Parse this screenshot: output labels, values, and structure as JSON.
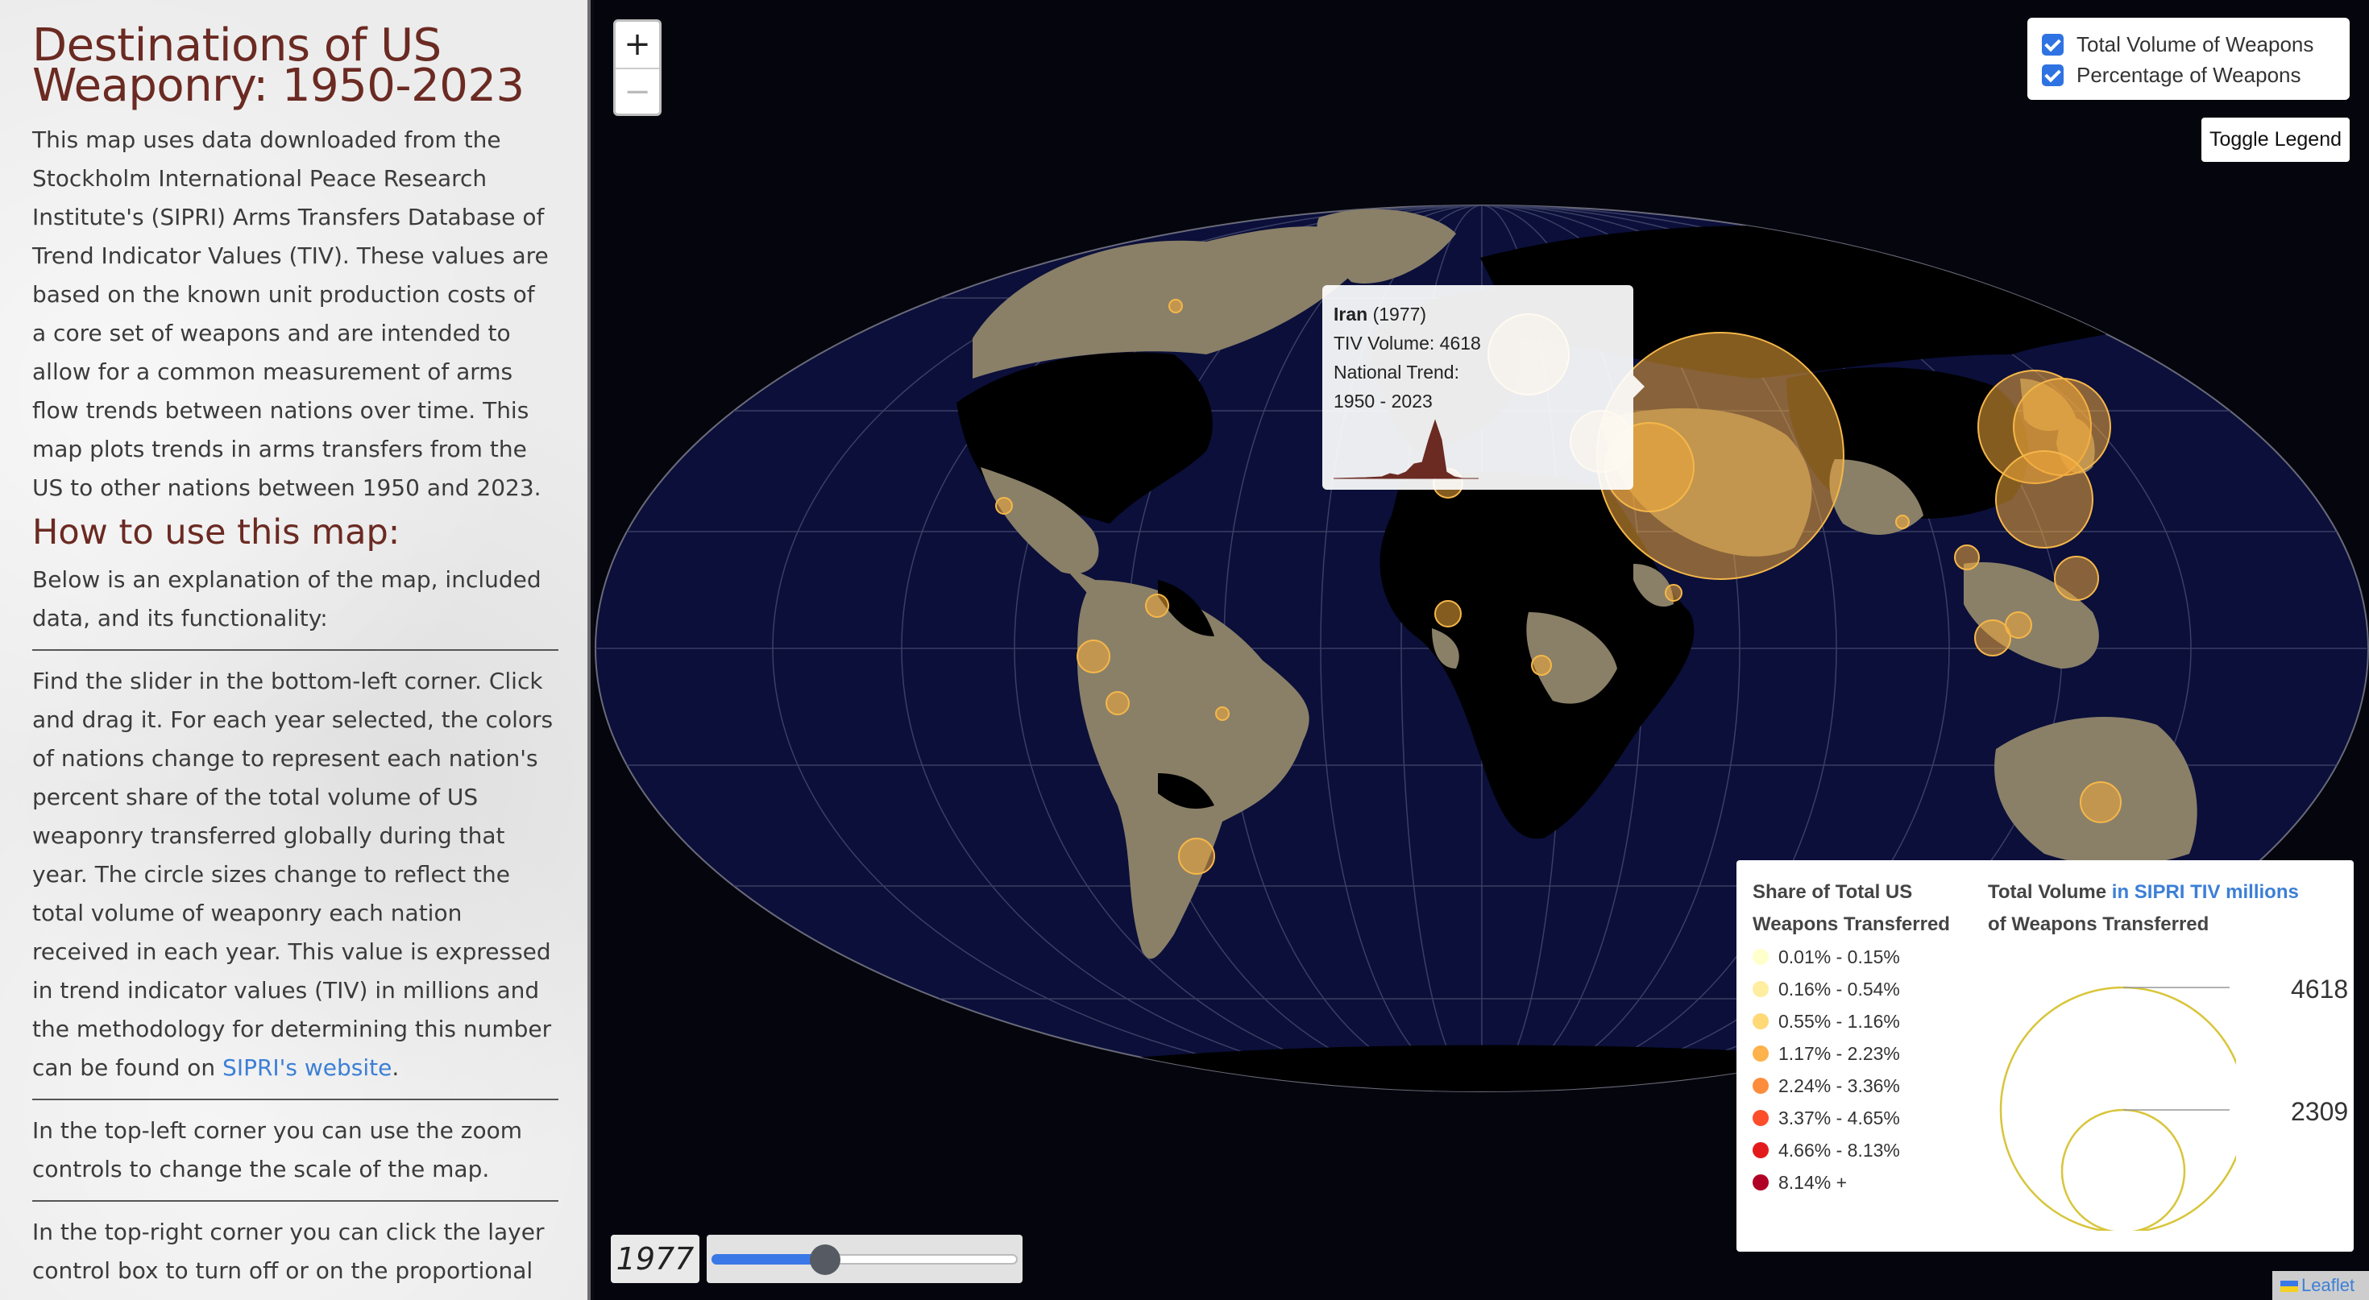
{
  "sidebar": {
    "title": "Destinations of US Weaponry: 1950-2023",
    "intro": "This map uses data downloaded from the Stockholm International Peace Research Institute's (SIPRI) Arms Transfers Database of Trend Indicator Values (TIV). These values are based on the known unit production costs of a core set of weapons and are intended to allow for a common measurement of arms flow trends between nations over time. This map plots trends in arms transfers from the US to other nations between 1950 and 2023.",
    "howto_heading": "How to use this map:",
    "howto_intro": "Below is an explanation of the map, included data, and its functionality:",
    "para_slider": "Find the slider in the bottom-left corner. Click and drag it. For each year selected, the colors of nations change to represent each nation's percent share of the total volume of US weaponry transferred globally during that year. The circle sizes change to reflect the total volume of weaponry each nation received in each year. This value is expressed in trend indicator values (TIV) in millions and the methodology for determining this number can be found on",
    "para_slider_link": "SIPRI's website",
    "para_zoom": "In the top-left corner you can use the zoom controls to change the scale of the map.",
    "para_layers": "In the top-right corner you can click the layer control box to turn off or on the proportional"
  },
  "map": {
    "zoom_in": "+",
    "zoom_out": "−",
    "layers": [
      "Total Volume of Weapons",
      "Percentage of Weapons"
    ],
    "toggle_legend": "Toggle Legend",
    "attribution": "Leaflet",
    "colors": {
      "ocean": "#0b0f3a",
      "land_data": "#8a8068",
      "land_nodata": "#000000",
      "circle": "#f0a83a"
    }
  },
  "popup": {
    "country": "Iran",
    "year_label": "(1977)",
    "volume": "TIV Volume: 4618",
    "trend": "National Trend:",
    "range": "1950 - 2023"
  },
  "slider": {
    "year": "1977",
    "min": 1950,
    "max": 2023,
    "value": 1977
  },
  "legend": {
    "share_title_1": "Share of Total US",
    "share_title_2": "Weapons Transferred",
    "volume_title_a": "Total Volume",
    "volume_title_b": "in SIPRI TIV millions",
    "volume_title_2": "of Weapons Transferred",
    "classes": [
      {
        "label": "0.01% - 0.15%",
        "color": "#ffffcc"
      },
      {
        "label": "0.16% - 0.54%",
        "color": "#ffeda0"
      },
      {
        "label": "0.55% - 1.16%",
        "color": "#fed976"
      },
      {
        "label": "1.17% - 2.23%",
        "color": "#feb24c"
      },
      {
        "label": "2.24% - 3.36%",
        "color": "#fd8d3c"
      },
      {
        "label": "3.37% - 4.65%",
        "color": "#fc4e2a"
      },
      {
        "label": "4.66% - 8.13%",
        "color": "#e31a1c"
      },
      {
        "label": "8.14% +",
        "color": "#b10026"
      }
    ],
    "max_value": "4618",
    "mid_value": "2309"
  }
}
